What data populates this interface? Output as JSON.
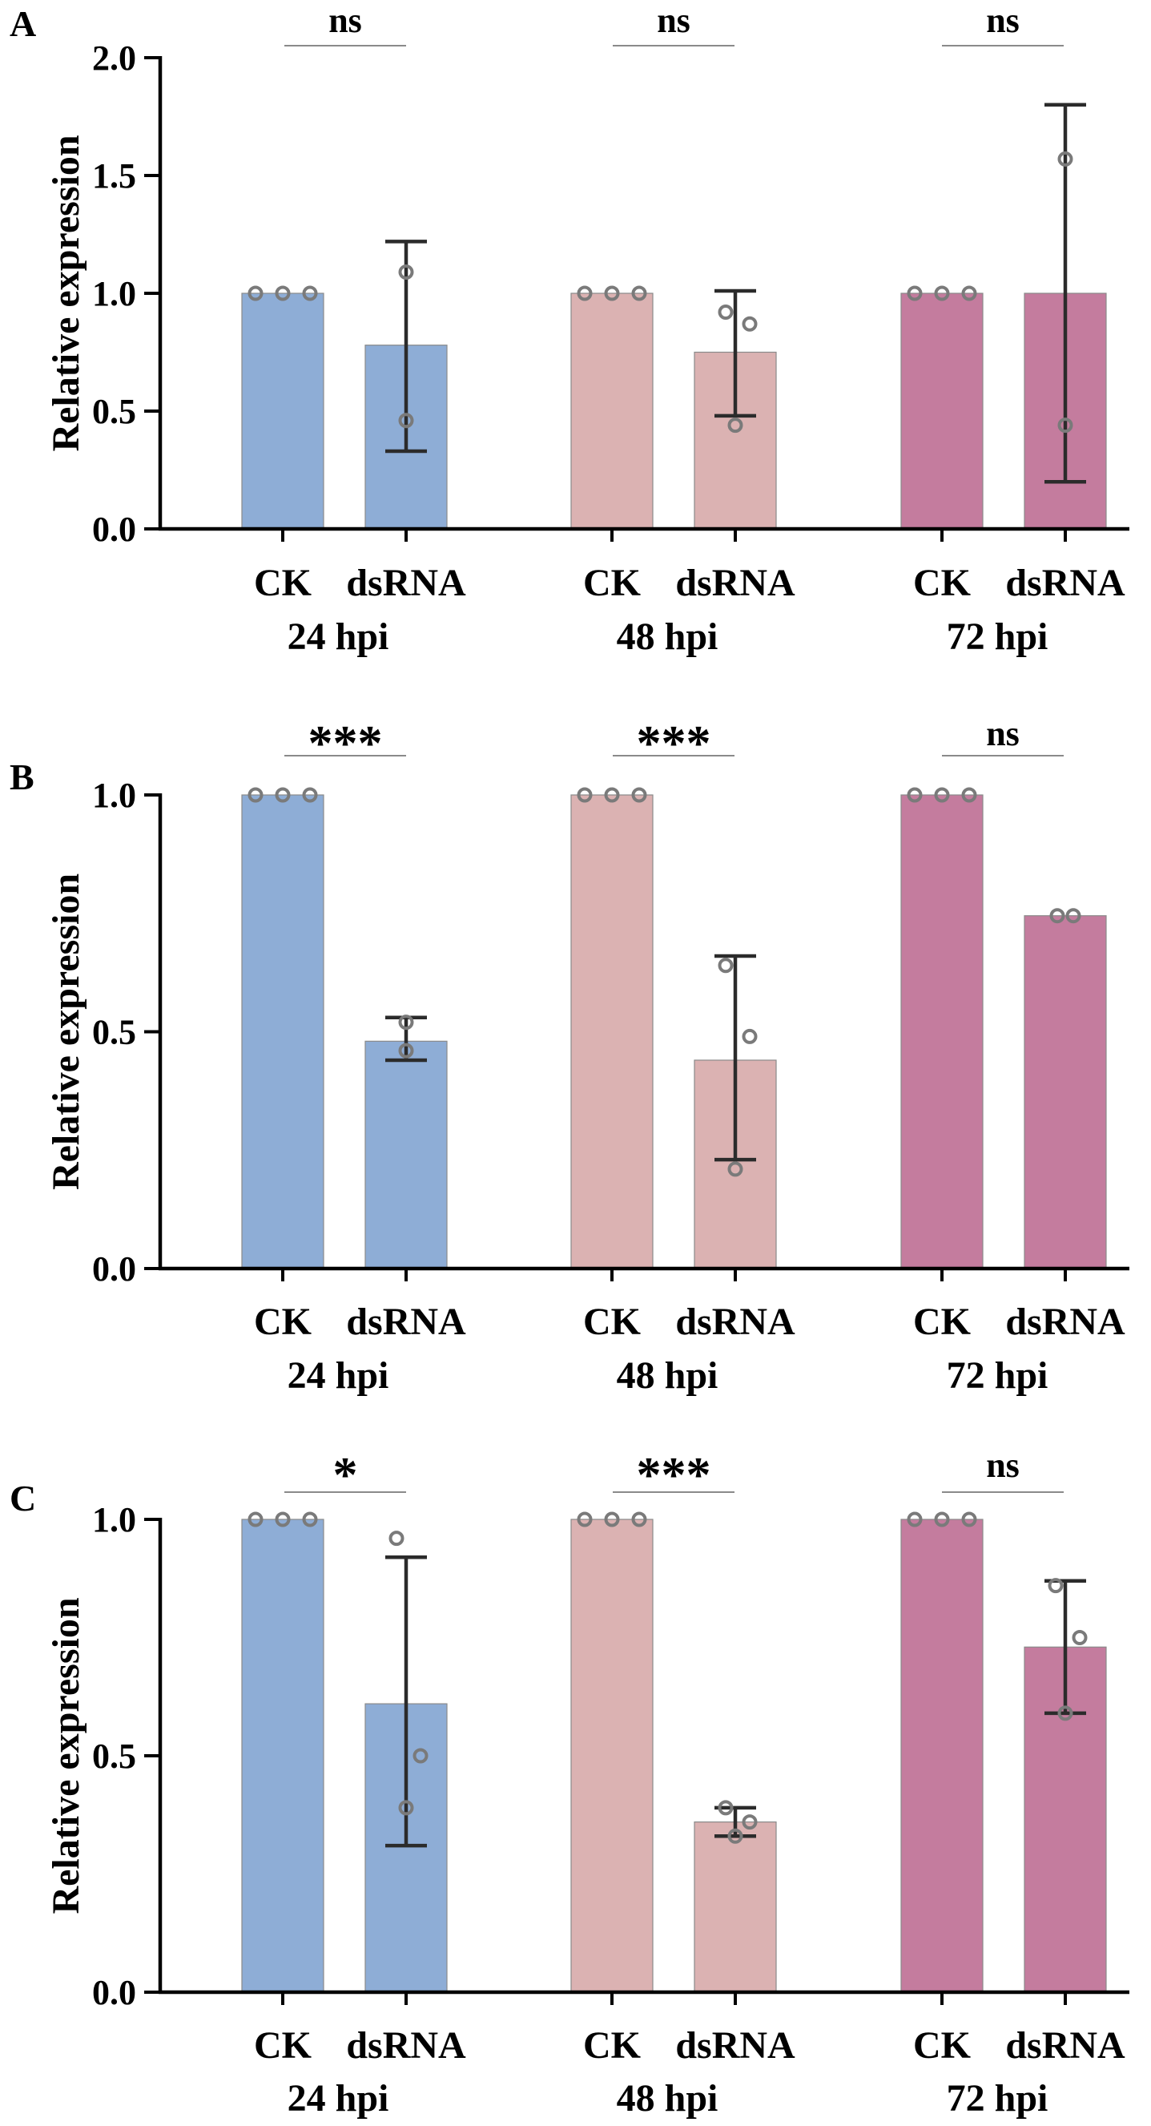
{
  "chart_data": [
    {
      "panel_label": "A",
      "type": "bar",
      "ylabel": "Relative expression",
      "ylim": [
        0,
        2.0
      ],
      "yticks": [
        0.0,
        0.5,
        1.0,
        1.5,
        2.0
      ],
      "ytick_labels": [
        "0.0",
        "0.5",
        "1.0",
        "1.5",
        "2.0"
      ],
      "groups": [
        {
          "label": "24 hpi",
          "significance": "ns",
          "color": "#8eadd6",
          "bars": [
            {
              "label": "CK",
              "value": 1.0,
              "err_low": null,
              "err_high": null,
              "points": [
                1.0,
                1.0,
                1.0
              ]
            },
            {
              "label": "dsRNA",
              "value": 0.78,
              "err_low": 0.33,
              "err_high": 1.22,
              "points": [
                1.09,
                0.46
              ]
            }
          ]
        },
        {
          "label": "48 hpi",
          "significance": "ns",
          "color": "#dbb2b2",
          "bars": [
            {
              "label": "CK",
              "value": 1.0,
              "err_low": null,
              "err_high": null,
              "points": [
                1.0,
                1.0,
                1.0
              ]
            },
            {
              "label": "dsRNA",
              "value": 0.75,
              "err_low": 0.48,
              "err_high": 1.01,
              "points": [
                0.92,
                0.87,
                0.44
              ]
            }
          ]
        },
        {
          "label": "72 hpi",
          "significance": "ns",
          "color": "#c47c9e",
          "bars": [
            {
              "label": "CK",
              "value": 1.0,
              "err_low": null,
              "err_high": null,
              "points": [
                1.0,
                1.0,
                1.0
              ]
            },
            {
              "label": "dsRNA",
              "value": 1.0,
              "err_low": 0.2,
              "err_high": 1.8,
              "points": [
                1.57,
                0.44
              ]
            }
          ]
        }
      ]
    },
    {
      "panel_label": "B",
      "type": "bar",
      "ylabel": "Relative expression",
      "ylim": [
        0,
        1.0
      ],
      "yticks": [
        0.0,
        0.5,
        1.0
      ],
      "ytick_labels": [
        "0.0",
        "0.5",
        "1.0"
      ],
      "groups": [
        {
          "label": "24 hpi",
          "significance": "***",
          "color": "#8eadd6",
          "bars": [
            {
              "label": "CK",
              "value": 1.0,
              "err_low": null,
              "err_high": null,
              "points": [
                1.0,
                1.0,
                1.0
              ]
            },
            {
              "label": "dsRNA",
              "value": 0.48,
              "err_low": 0.44,
              "err_high": 0.53,
              "points": [
                0.52,
                0.46
              ]
            }
          ]
        },
        {
          "label": "48 hpi",
          "significance": "***",
          "color": "#dbb2b2",
          "bars": [
            {
              "label": "CK",
              "value": 1.0,
              "err_low": null,
              "err_high": null,
              "points": [
                1.0,
                1.0,
                1.0
              ]
            },
            {
              "label": "dsRNA",
              "value": 0.44,
              "err_low": 0.23,
              "err_high": 0.66,
              "points": [
                0.64,
                0.49,
                0.21
              ]
            }
          ]
        },
        {
          "label": "72 hpi",
          "significance": "ns",
          "color": "#c47c9e",
          "bars": [
            {
              "label": "CK",
              "value": 1.0,
              "err_low": null,
              "err_high": null,
              "points": [
                1.0,
                1.0,
                1.0
              ]
            },
            {
              "label": "dsRNA",
              "value": 0.745,
              "err_low": null,
              "err_high": null,
              "points": [
                0.745,
                0.745
              ]
            }
          ]
        }
      ]
    },
    {
      "panel_label": "C",
      "type": "bar",
      "ylabel": "Relative expression",
      "ylim": [
        0,
        1.0
      ],
      "yticks": [
        0.0,
        0.5,
        1.0
      ],
      "ytick_labels": [
        "0.0",
        "0.5",
        "1.0"
      ],
      "groups": [
        {
          "label": "24 hpi",
          "significance": "*",
          "color": "#8eadd6",
          "bars": [
            {
              "label": "CK",
              "value": 1.0,
              "err_low": null,
              "err_high": null,
              "points": [
                1.0,
                1.0,
                1.0
              ]
            },
            {
              "label": "dsRNA",
              "value": 0.61,
              "err_low": 0.31,
              "err_high": 0.92,
              "points": [
                0.96,
                0.5,
                0.39
              ]
            }
          ]
        },
        {
          "label": "48 hpi",
          "significance": "***",
          "color": "#dbb2b2",
          "bars": [
            {
              "label": "CK",
              "value": 1.0,
              "err_low": null,
              "err_high": null,
              "points": [
                1.0,
                1.0,
                1.0
              ]
            },
            {
              "label": "dsRNA",
              "value": 0.36,
              "err_low": 0.33,
              "err_high": 0.39,
              "points": [
                0.39,
                0.36,
                0.33
              ]
            }
          ]
        },
        {
          "label": "72 hpi",
          "significance": "ns",
          "color": "#c47c9e",
          "bars": [
            {
              "label": "CK",
              "value": 1.0,
              "err_low": null,
              "err_high": null,
              "points": [
                1.0,
                1.0,
                1.0
              ]
            },
            {
              "label": "dsRNA",
              "value": 0.73,
              "err_low": 0.59,
              "err_high": 0.87,
              "points": [
                0.86,
                0.75,
                0.59
              ]
            }
          ]
        }
      ]
    }
  ]
}
